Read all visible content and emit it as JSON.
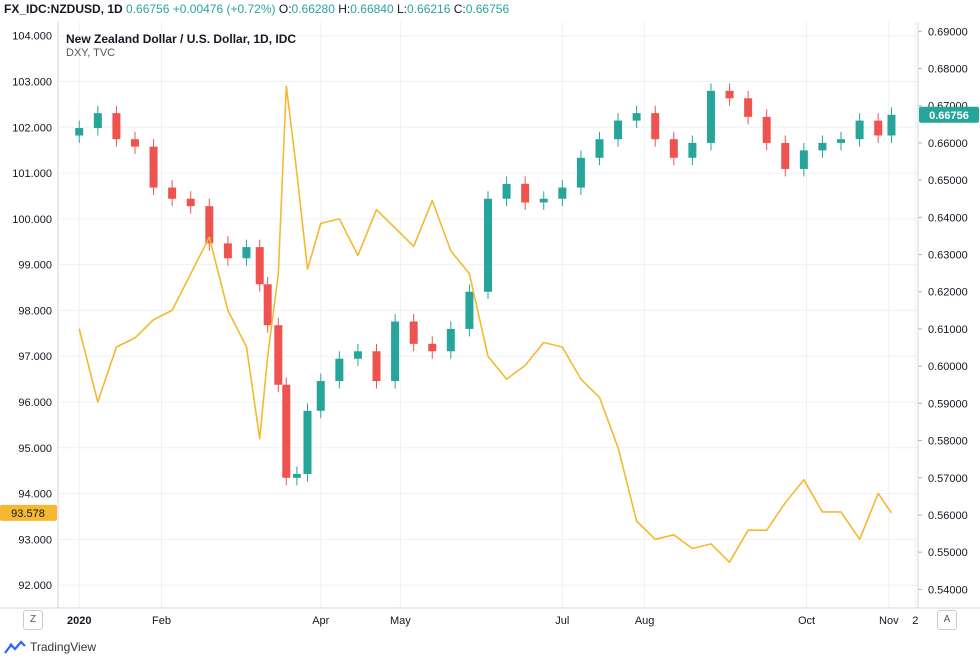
{
  "header": {
    "symbol": "FX_IDC:NZDUSD, 1D",
    "last": "0.66756",
    "change": "+0.00476 (+0.72%)",
    "o_label": "O:",
    "o_value": "0.66280",
    "h_label": "H:",
    "h_value": "0.66840",
    "l_label": "L:",
    "l_value": "0.66216",
    "c_label": "C:",
    "c_value": "0.66756"
  },
  "legend": {
    "main_series": "New Zealand Dollar / U.S. Dollar, 1D, IDC",
    "overlay_series": "DXY, TVC"
  },
  "corner_buttons": {
    "zoom": "Z",
    "auto": "A"
  },
  "footer": {
    "brand": "TradingView"
  },
  "colors": {
    "up": "#26a69a",
    "down": "#ef5350",
    "overlay": "#f5b830",
    "nzd_badge": "#26a69a",
    "dxy_badge": "#f5b830",
    "grid": "#eef0f3"
  },
  "chart_data": {
    "type": "line",
    "title": "New Zealand Dollar / U.S. Dollar, 1D, IDC",
    "x_ticks": [
      "2020",
      "Feb",
      "Apr",
      "May",
      "Jul",
      "Aug",
      "Oct",
      "Nov",
      "2"
    ],
    "left_axis": {
      "label": "DXY",
      "ticks": [
        "104.000",
        "103.000",
        "102.000",
        "101.000",
        "100.000",
        "99.000",
        "98.000",
        "97.000",
        "96.000",
        "95.000",
        "94.000",
        "93.000",
        "92.000"
      ],
      "range": [
        91.5,
        104.3
      ],
      "last_value": "93.578"
    },
    "right_axis": {
      "label": "NZDUSD",
      "ticks": [
        "0.69000",
        "0.68000",
        "0.67000",
        "0.66000",
        "0.65000",
        "0.64000",
        "0.63000",
        "0.62000",
        "0.61000",
        "0.60000",
        "0.59000",
        "0.58000",
        "0.57000",
        "0.56000",
        "0.55000",
        "0.54000"
      ],
      "range": [
        0.535,
        0.6925
      ],
      "last_value": "0.66756"
    },
    "series": [
      {
        "name": "DXY, TVC",
        "type": "line",
        "axis": "left",
        "x": [
          "2020-01-01",
          "2020-01-08",
          "2020-01-15",
          "2020-01-22",
          "2020-01-29",
          "2020-02-05",
          "2020-02-12",
          "2020-02-19",
          "2020-02-26",
          "2020-03-04",
          "2020-03-09",
          "2020-03-12",
          "2020-03-16",
          "2020-03-19",
          "2020-03-23",
          "2020-03-27",
          "2020-04-01",
          "2020-04-08",
          "2020-04-15",
          "2020-04-22",
          "2020-04-29",
          "2020-05-06",
          "2020-05-13",
          "2020-05-20",
          "2020-05-27",
          "2020-06-03",
          "2020-06-10",
          "2020-06-17",
          "2020-06-24",
          "2020-07-01",
          "2020-07-08",
          "2020-07-15",
          "2020-07-22",
          "2020-07-29",
          "2020-08-05",
          "2020-08-12",
          "2020-08-19",
          "2020-08-26",
          "2020-09-02",
          "2020-09-09",
          "2020-09-16",
          "2020-09-23",
          "2020-09-30",
          "2020-10-07",
          "2020-10-14",
          "2020-10-21",
          "2020-10-28",
          "2020-11-02"
        ],
        "values": [
          97.6,
          96.0,
          97.2,
          97.4,
          97.8,
          98.0,
          98.8,
          99.6,
          98.0,
          97.2,
          95.2,
          97.0,
          98.8,
          102.9,
          101.0,
          98.9,
          99.9,
          100.0,
          99.2,
          100.2,
          99.8,
          99.4,
          100.4,
          99.3,
          98.8,
          97.0,
          96.5,
          96.8,
          97.3,
          97.2,
          96.5,
          96.1,
          95.0,
          93.4,
          93.0,
          93.1,
          92.8,
          92.9,
          92.5,
          93.2,
          93.2,
          93.8,
          94.3,
          93.6,
          93.6,
          93.0,
          94.0,
          93.578
        ]
      },
      {
        "name": "New Zealand Dollar / U.S. Dollar",
        "type": "candlestick",
        "axis": "right",
        "x": [
          "2020-01-01",
          "2020-01-08",
          "2020-01-15",
          "2020-01-22",
          "2020-01-29",
          "2020-02-05",
          "2020-02-12",
          "2020-02-19",
          "2020-02-26",
          "2020-03-04",
          "2020-03-09",
          "2020-03-12",
          "2020-03-16",
          "2020-03-19",
          "2020-03-23",
          "2020-03-27",
          "2020-04-01",
          "2020-04-08",
          "2020-04-15",
          "2020-04-22",
          "2020-04-29",
          "2020-05-06",
          "2020-05-13",
          "2020-05-20",
          "2020-05-27",
          "2020-06-03",
          "2020-06-10",
          "2020-06-17",
          "2020-06-24",
          "2020-07-01",
          "2020-07-08",
          "2020-07-15",
          "2020-07-22",
          "2020-07-29",
          "2020-08-05",
          "2020-08-12",
          "2020-08-19",
          "2020-08-26",
          "2020-09-02",
          "2020-09-09",
          "2020-09-16",
          "2020-09-23",
          "2020-09-30",
          "2020-10-07",
          "2020-10-14",
          "2020-10-21",
          "2020-10-28",
          "2020-11-02"
        ],
        "values": [
          0.664,
          0.668,
          0.661,
          0.659,
          0.648,
          0.645,
          0.643,
          0.633,
          0.629,
          0.632,
          0.622,
          0.611,
          0.595,
          0.57,
          0.571,
          0.588,
          0.596,
          0.602,
          0.604,
          0.596,
          0.612,
          0.606,
          0.604,
          0.61,
          0.62,
          0.645,
          0.649,
          0.644,
          0.645,
          0.648,
          0.656,
          0.661,
          0.666,
          0.668,
          0.661,
          0.656,
          0.66,
          0.674,
          0.672,
          0.667,
          0.66,
          0.653,
          0.658,
          0.66,
          0.661,
          0.666,
          0.662,
          0.66756
        ]
      }
    ]
  }
}
